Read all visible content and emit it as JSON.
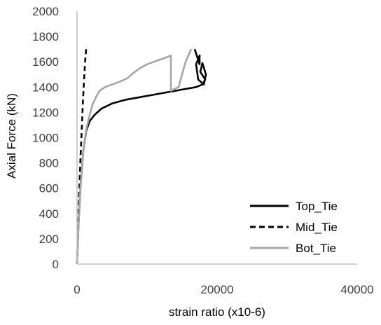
{
  "chart_data": {
    "type": "line",
    "xlabel": "strain ratio (x10-6)",
    "ylabel": "Axial Force (kN)",
    "xlim": [
      0,
      40000
    ],
    "ylim": [
      0,
      2000
    ],
    "x_ticks": [
      0,
      20000,
      40000
    ],
    "y_ticks": [
      0,
      200,
      400,
      600,
      800,
      1000,
      1200,
      1400,
      1600,
      1800,
      2000
    ],
    "grid": false,
    "legend_position": "bottom-right",
    "series": [
      {
        "name": "Top_Tie",
        "color": "#000000",
        "dash": "solid",
        "x": [
          0,
          200,
          500,
          900,
          1300,
          1800,
          2500,
          3500,
          5000,
          7000,
          9000,
          11000,
          13000,
          15000,
          17000,
          17900,
          18300,
          17600,
          17900,
          18400,
          18100,
          17300,
          17000,
          17500,
          17500,
          16800
        ],
        "y": [
          0,
          300,
          620,
          900,
          1050,
          1130,
          1180,
          1230,
          1270,
          1300,
          1320,
          1340,
          1360,
          1380,
          1400,
          1420,
          1460,
          1520,
          1590,
          1500,
          1420,
          1460,
          1580,
          1650,
          1580,
          1700
        ]
      },
      {
        "name": "Mid_Tie",
        "color": "#000000",
        "dash": "dashed",
        "x": [
          0,
          150,
          300,
          500,
          700,
          850,
          1000,
          1150,
          1300
        ],
        "y": [
          0,
          300,
          550,
          850,
          1100,
          1300,
          1450,
          1600,
          1700
        ]
      },
      {
        "name": "Bot_Tie",
        "color": "#a6a6a6",
        "dash": "solid",
        "x": [
          0,
          200,
          500,
          900,
          1300,
          1800,
          2200,
          2700,
          3200,
          4000,
          5000,
          6000,
          6800,
          7200,
          8000,
          9000,
          10000,
          11000,
          12000,
          13000,
          13400,
          13400,
          14500,
          15500,
          16300
        ],
        "y": [
          0,
          300,
          620,
          900,
          1060,
          1180,
          1260,
          1320,
          1370,
          1400,
          1420,
          1440,
          1460,
          1470,
          1510,
          1550,
          1580,
          1600,
          1620,
          1640,
          1650,
          1370,
          1400,
          1600,
          1700
        ]
      }
    ]
  }
}
